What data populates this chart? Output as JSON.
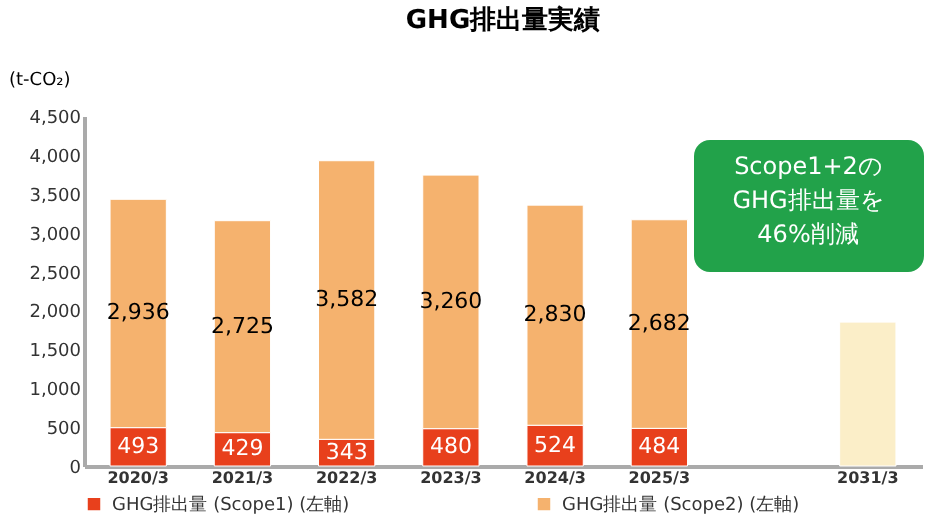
{
  "chart_data": {
    "type": "bar",
    "stacked": true,
    "title": "GHG排出量実績",
    "ylabel": "(t-CO₂)",
    "categories": [
      "2020/3",
      "2021/3",
      "2022/3",
      "2023/3",
      "2024/3",
      "2025/3",
      null,
      "2031/3"
    ],
    "ylim": [
      0,
      4500
    ],
    "yticks": [
      0,
      500,
      {
        "value": 1000,
        "label": "1,000"
      },
      {
        "value": 1500,
        "label": "1,500"
      },
      {
        "value": 2000,
        "label": "2,000"
      },
      {
        "value": 2500,
        "label": "2,500"
      },
      {
        "value": 3000,
        "label": "3,000"
      },
      {
        "value": 3500,
        "label": "3,500"
      },
      {
        "value": 4000,
        "label": "4,000"
      },
      {
        "value": 4500,
        "label": "4,500"
      }
    ],
    "grid": false,
    "legend": "bottom",
    "series": [
      {
        "name": "GHG排出量 (Scope1) (左軸)",
        "color": "#e8401c",
        "values": [
          493,
          429,
          343,
          480,
          524,
          484,
          null,
          null
        ],
        "value_labels": [
          "493",
          "429",
          "343",
          "480",
          "524",
          "484",
          null,
          null
        ]
      },
      {
        "name": "GHG排出量 (Scope2) (左軸)",
        "color": "#f5b26e",
        "values": [
          2936,
          2725,
          3582,
          3260,
          2830,
          2682,
          null,
          null
        ],
        "value_labels": [
          "2,936",
          "2,725",
          "3,582",
          "3,260",
          "2,830",
          "2,682",
          null,
          null
        ]
      },
      {
        "color": "#fbeec8",
        "values": [
          null,
          null,
          null,
          null,
          null,
          null,
          null,
          1850
        ]
      }
    ],
    "annotations": [
      "Scope1+2の\nGHG排出量を\n46%削減"
    ]
  }
}
